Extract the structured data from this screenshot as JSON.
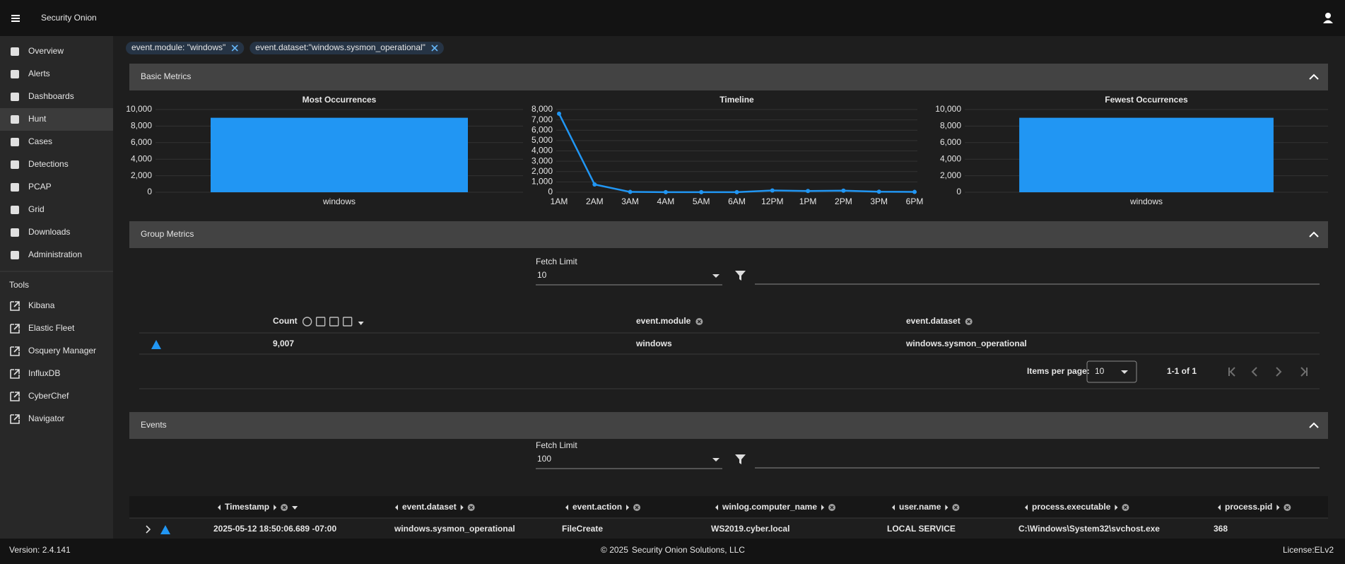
{
  "header": {
    "title": "Security Onion"
  },
  "sidebar": {
    "items": [
      "Overview",
      "Alerts",
      "Dashboards",
      "Hunt",
      "Cases",
      "Detections",
      "PCAP",
      "Grid",
      "Downloads",
      "Administration"
    ],
    "active": "Hunt",
    "tools_heading": "Tools",
    "tools": [
      "Kibana",
      "Elastic Fleet",
      "Osquery Manager",
      "InfluxDB",
      "CyberChef",
      "Navigator"
    ]
  },
  "filters": [
    "event.module: \"windows\"",
    "event.dataset:\"windows.sysmon_operational\""
  ],
  "sections": {
    "basic": "Basic Metrics",
    "group": "Group Metrics",
    "events": "Events"
  },
  "chart_data": [
    {
      "type": "bar",
      "title": "Most Occurrences",
      "categories": [
        "windows"
      ],
      "values": [
        9007
      ],
      "color": "#2196f3",
      "ylim": [
        0,
        10000
      ],
      "yticks": [
        0,
        {
          "value": 2000,
          "label": "2,000"
        },
        {
          "value": 4000,
          "label": "4,000"
        },
        {
          "value": 6000,
          "label": "6,000"
        },
        {
          "value": 8000,
          "label": "8,000"
        },
        {
          "value": 10000,
          "label": "10,000"
        }
      ],
      "grid": true
    },
    {
      "type": "line",
      "title": "Timeline",
      "categories": [
        "1AM",
        "2AM",
        "3AM",
        "4AM",
        "5AM",
        "6AM",
        "12PM",
        "1PM",
        "2PM",
        "3PM",
        "6PM"
      ],
      "values": [
        7600,
        750,
        30,
        10,
        10,
        10,
        170,
        120,
        150,
        50,
        30
      ],
      "color": "#2196f3",
      "ylim": [
        0,
        8000
      ],
      "yticks": [
        0,
        {
          "value": 1000,
          "label": "1,000"
        },
        {
          "value": 2000,
          "label": "2,000"
        },
        {
          "value": 3000,
          "label": "3,000"
        },
        {
          "value": 4000,
          "label": "4,000"
        },
        {
          "value": 5000,
          "label": "5,000"
        },
        {
          "value": 6000,
          "label": "6,000"
        },
        {
          "value": 7000,
          "label": "7,000"
        },
        {
          "value": 8000,
          "label": "8,000"
        }
      ],
      "grid": true
    },
    {
      "type": "bar",
      "title": "Fewest Occurrences",
      "categories": [
        "windows"
      ],
      "values": [
        9007
      ],
      "color": "#2196f3",
      "ylim": [
        0,
        10000
      ],
      "yticks": [
        0,
        {
          "value": 2000,
          "label": "2,000"
        },
        {
          "value": 4000,
          "label": "4,000"
        },
        {
          "value": 6000,
          "label": "6,000"
        },
        {
          "value": 8000,
          "label": "8,000"
        },
        {
          "value": 10000,
          "label": "10,000"
        }
      ],
      "grid": true
    }
  ],
  "group_metrics": {
    "fetch_limit_label": "Fetch Limit",
    "fetch_limit": 10,
    "columns": [
      "Count",
      "event.module",
      "event.dataset"
    ],
    "rows": [
      [
        "9,007",
        "windows",
        "windows.sysmon_operational"
      ]
    ],
    "items_per_page_label": "Items per page:",
    "items_per_page": 10,
    "range": "1-1 of 1"
  },
  "events": {
    "fetch_limit_label": "Fetch Limit",
    "fetch_limit": 100,
    "columns": [
      "Timestamp",
      "event.dataset",
      "event.action",
      "winlog.computer_name",
      "user.name",
      "process.executable",
      "process.pid"
    ],
    "rows": [
      [
        "2025-05-12 18:50:06.689 -07:00",
        "windows.sysmon_operational",
        "FileCreate",
        "WS2019.cyber.local",
        "LOCAL SERVICE",
        "C:\\Windows\\System32\\svchost.exe",
        "368"
      ]
    ]
  },
  "footer": {
    "version": "Version: 2.4.141",
    "copyright": "© 2025",
    "company": "Security Onion Solutions, LLC",
    "license": "License:ELv2"
  }
}
